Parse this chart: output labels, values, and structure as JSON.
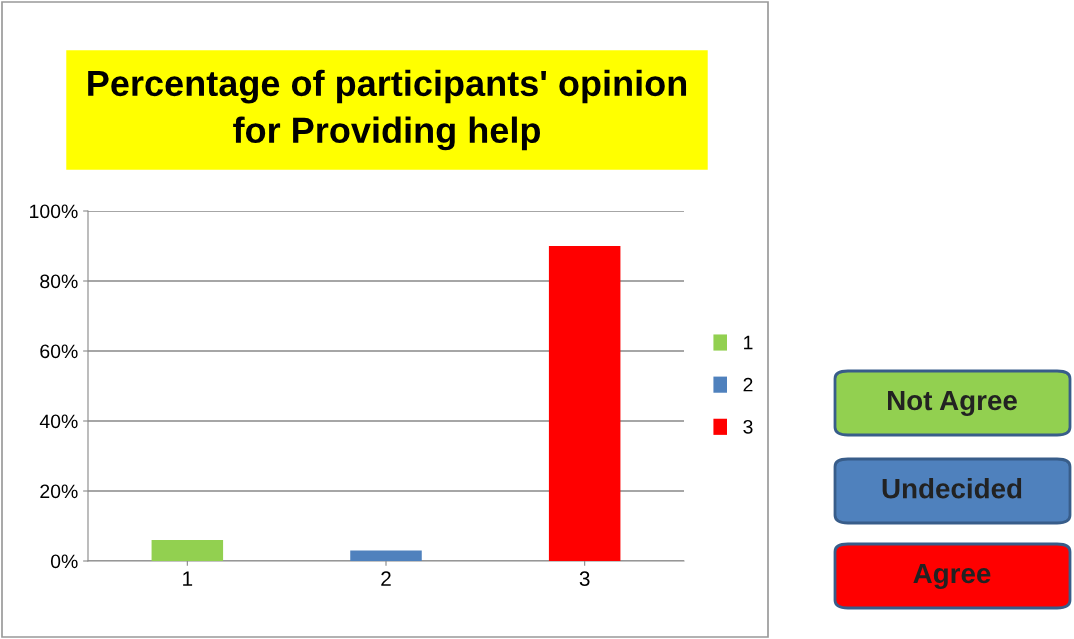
{
  "chart_data": {
    "type": "bar",
    "title": "Percentage of participants' opinion\nfor Providing help",
    "categories": [
      "1",
      "2",
      "3"
    ],
    "series": [
      {
        "name": "1",
        "color": "#92d050",
        "values": [
          6,
          null,
          null
        ]
      },
      {
        "name": "2",
        "color": "#4f81bd",
        "values": [
          null,
          3,
          null
        ]
      },
      {
        "name": "3",
        "color": "#ff0000",
        "values": [
          null,
          null,
          90
        ]
      }
    ],
    "ylim": [
      0,
      100
    ],
    "yticks": [
      {
        "value": 0,
        "label": "0%"
      },
      {
        "value": 20,
        "label": "20%"
      },
      {
        "value": 40,
        "label": "40%"
      },
      {
        "value": 60,
        "label": "60%"
      },
      {
        "value": 80,
        "label": "80%"
      },
      {
        "value": 100,
        "label": "100%"
      }
    ],
    "grid": "y",
    "legend": "right",
    "annotations": [
      "Not Agree",
      "Undecided",
      "Agree"
    ]
  }
}
